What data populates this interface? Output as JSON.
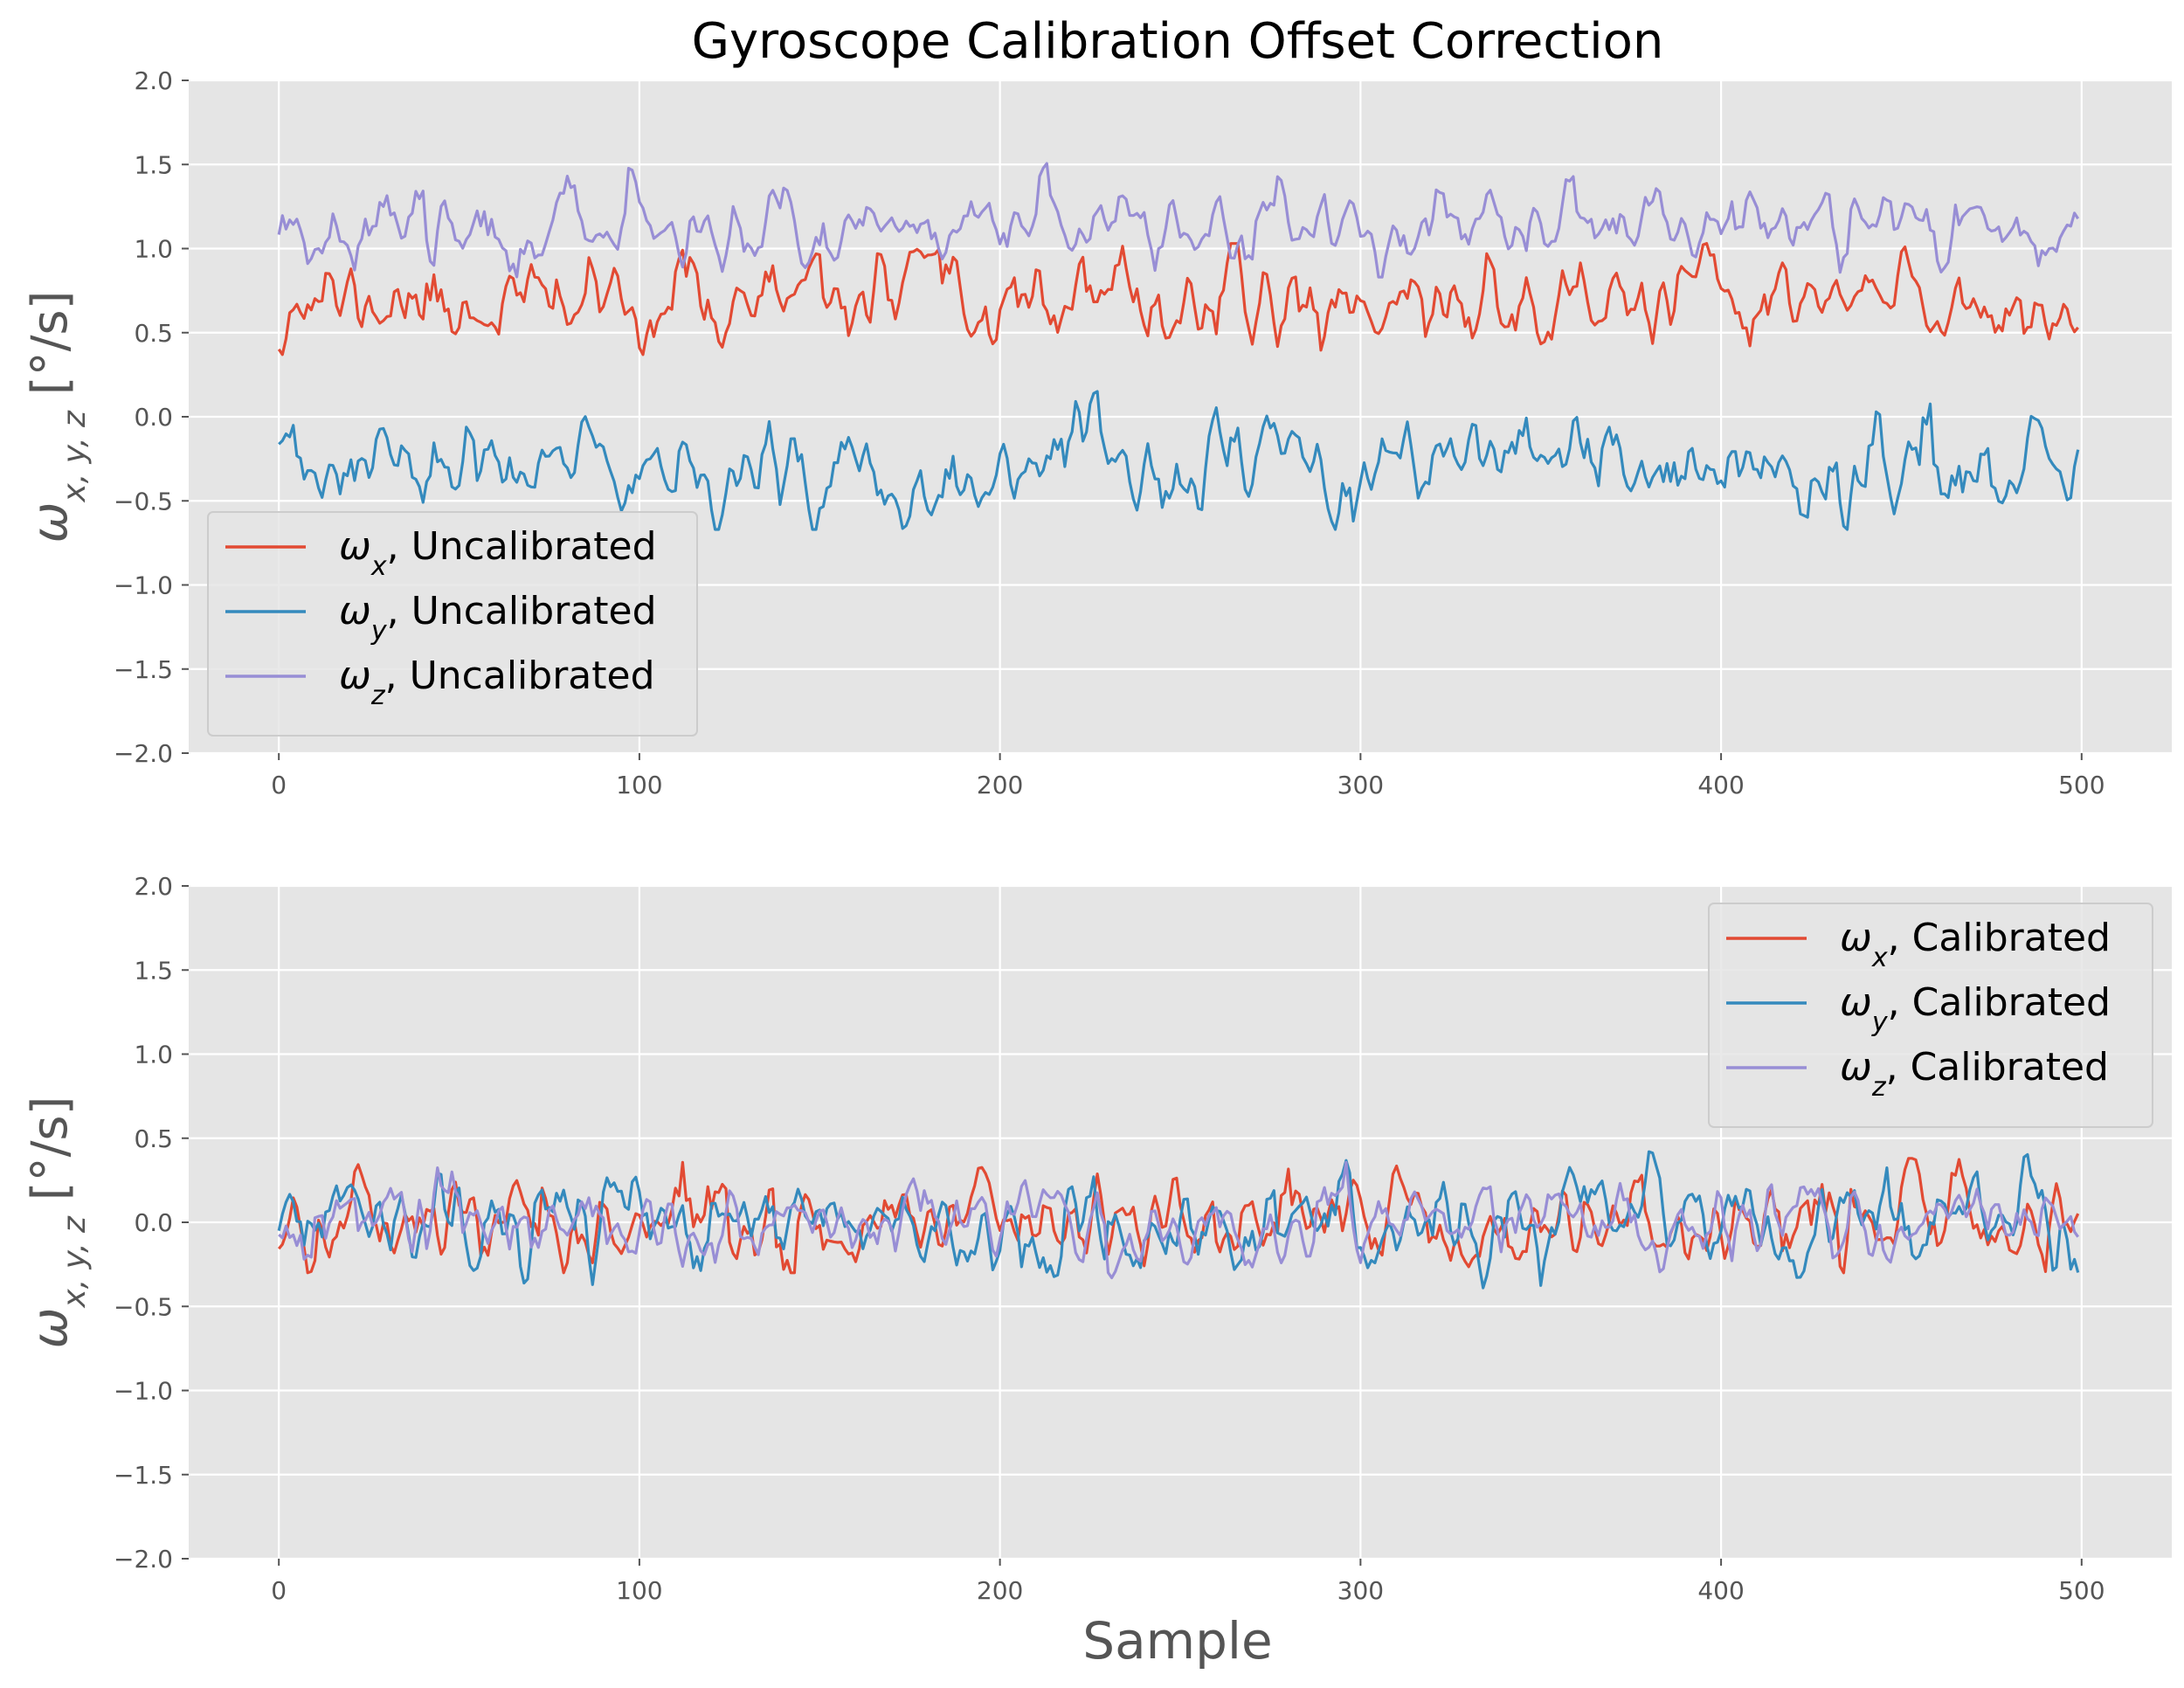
{
  "figure": {
    "title": "Gyroscope Calibration Offset Correction",
    "shared_xlabel": "Sample"
  },
  "colors": {
    "axes_bg": "#E5E5E5",
    "grid": "#FFFFFF",
    "tick_text": "#555555",
    "label_text": "#555555",
    "title_text": "#000000",
    "series": [
      "#E24A33",
      "#348ABD",
      "#988ED5"
    ]
  },
  "chart_data": [
    {
      "type": "line",
      "panel": "top",
      "ylabel": "ωx, y, z [°/s]",
      "xlabel": "",
      "xlim": [
        -25,
        525
      ],
      "ylim": [
        -2.0,
        2.0
      ],
      "xticks": [
        0,
        100,
        200,
        300,
        400,
        500
      ],
      "yticks": [
        -2.0,
        -1.5,
        -1.0,
        -0.5,
        0.0,
        0.5,
        1.0,
        1.5,
        2.0
      ],
      "grid": true,
      "legend_position": "lower-left",
      "n_samples": 500,
      "series": [
        {
          "name": "ωx, Uncalibrated",
          "color": "#E24A33",
          "mean": 0.69,
          "std": 0.14,
          "min": 0.37,
          "max": 1.03
        },
        {
          "name": "ωy, Uncalibrated",
          "color": "#348ABD",
          "mean": -0.3,
          "std": 0.15,
          "min": -0.67,
          "max": 0.15
        },
        {
          "name": "ωz, Uncalibrated",
          "color": "#988ED5",
          "mean": 1.13,
          "std": 0.12,
          "min": 0.83,
          "max": 1.51
        }
      ]
    },
    {
      "type": "line",
      "panel": "bottom",
      "ylabel": "ωx, y, z [°/s]",
      "xlabel": "Sample",
      "xlim": [
        -25,
        525
      ],
      "ylim": [
        -2.0,
        2.0
      ],
      "xticks": [
        0,
        100,
        200,
        300,
        400,
        500
      ],
      "yticks": [
        -2.0,
        -1.5,
        -1.0,
        -0.5,
        0.0,
        0.5,
        1.0,
        1.5,
        2.0
      ],
      "grid": true,
      "legend_position": "upper-right",
      "n_samples": 500,
      "series": [
        {
          "name": "ωx, Calibrated",
          "color": "#E24A33",
          "mean": 0.0,
          "std": 0.14,
          "min": -0.3,
          "max": 0.38
        },
        {
          "name": "ωy, Calibrated",
          "color": "#348ABD",
          "mean": 0.0,
          "std": 0.15,
          "min": -0.39,
          "max": 0.42
        },
        {
          "name": "ωz, Calibrated",
          "color": "#988ED5",
          "mean": 0.0,
          "std": 0.12,
          "min": -0.33,
          "max": 0.38
        }
      ]
    }
  ]
}
